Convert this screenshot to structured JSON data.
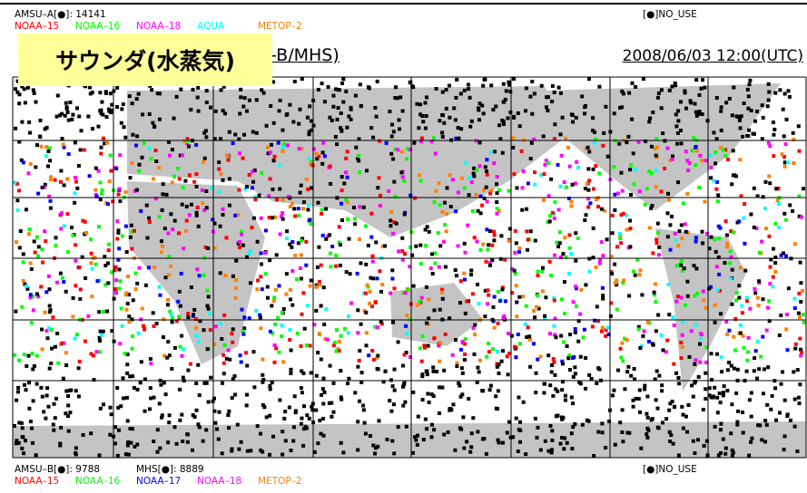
{
  "top_legend": {
    "count_label": "AMSU–A[●]: 14141",
    "no_use": "[●]NO_USE",
    "satellites": [
      {
        "name": "NOAA–15",
        "color": "#ff0000"
      },
      {
        "name": "NOAA–16",
        "color": "#00ff00"
      },
      {
        "name": "NOAA–18",
        "color": "#ff00ff"
      },
      {
        "name": "AQUA",
        "color": "#00ffff"
      },
      {
        "name": "METOP–2",
        "color": "#ff8000"
      }
    ]
  },
  "overlay_title": "サウンダ(水蒸気)",
  "map_title": "-B/MHS)",
  "datetime": "2008/06/03 12:00(UTC)",
  "bottom_legend": {
    "count_label": "AMSU–B[●]: 9788",
    "count_label_2": "MHS[●]: 8889",
    "no_use": "[●]NO_USE",
    "satellites": [
      {
        "name": "NOAA–15",
        "color": "#ff0000"
      },
      {
        "name": "NOAA–16",
        "color": "#00ff00"
      },
      {
        "name": "NOAA–17",
        "color": "#0000ff"
      },
      {
        "name": "NOAA–18",
        "color": "#ff00ff"
      },
      {
        "name": "METOP–2",
        "color": "#ff8000"
      }
    ]
  }
}
